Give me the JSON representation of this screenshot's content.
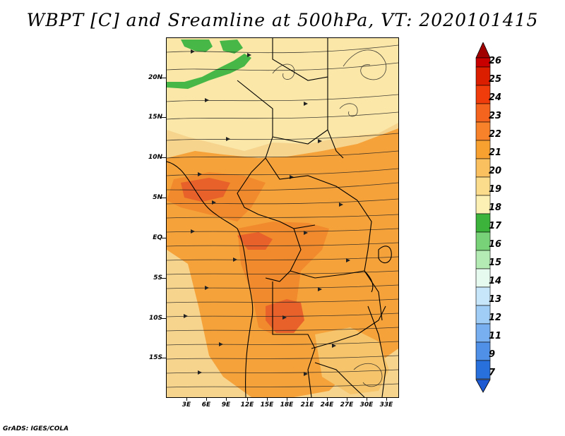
{
  "title": "WBPT [C] and Sreamline at 500hPa, VT: 2020101415",
  "credit": "GrADS: IGES/COLA",
  "lat_labels": [
    "20N",
    "15N",
    "10N",
    "5N",
    "EQ",
    "5S",
    "10S",
    "15S"
  ],
  "lon_labels": [
    "3E",
    "6E",
    "9E",
    "12E",
    "15E",
    "18E",
    "21E",
    "24E",
    "27E",
    "30E",
    "33E"
  ],
  "colorbar": {
    "labels": [
      "26",
      "25",
      "24",
      "23",
      "22",
      "21",
      "20",
      "19",
      "18",
      "17",
      "16",
      "15",
      "14",
      "13",
      "12",
      "11",
      "9",
      "7"
    ],
    "colors": [
      "#c80000",
      "#dc1e00",
      "#f03c0a",
      "#f5641e",
      "#f8822a",
      "#f8a030",
      "#fac060",
      "#fadc8c",
      "#fdf0b4",
      "#3cb43c",
      "#78d278",
      "#b4ebb4",
      "#e6faf0",
      "#c8e6fa",
      "#a0cdf5",
      "#78aff0",
      "#5090e6",
      "#2870dc"
    ],
    "top_color": "#a00000",
    "bottom_color": "#1e5ad2"
  },
  "map": {
    "colors": {
      "background": "#f6d48e",
      "warm": "#f6a23a",
      "hot": "#f07e2c",
      "hotter": "#e8602a",
      "pale": "#fbe7a8",
      "green": "#47b847",
      "green_light": "#7ed27e"
    }
  }
}
